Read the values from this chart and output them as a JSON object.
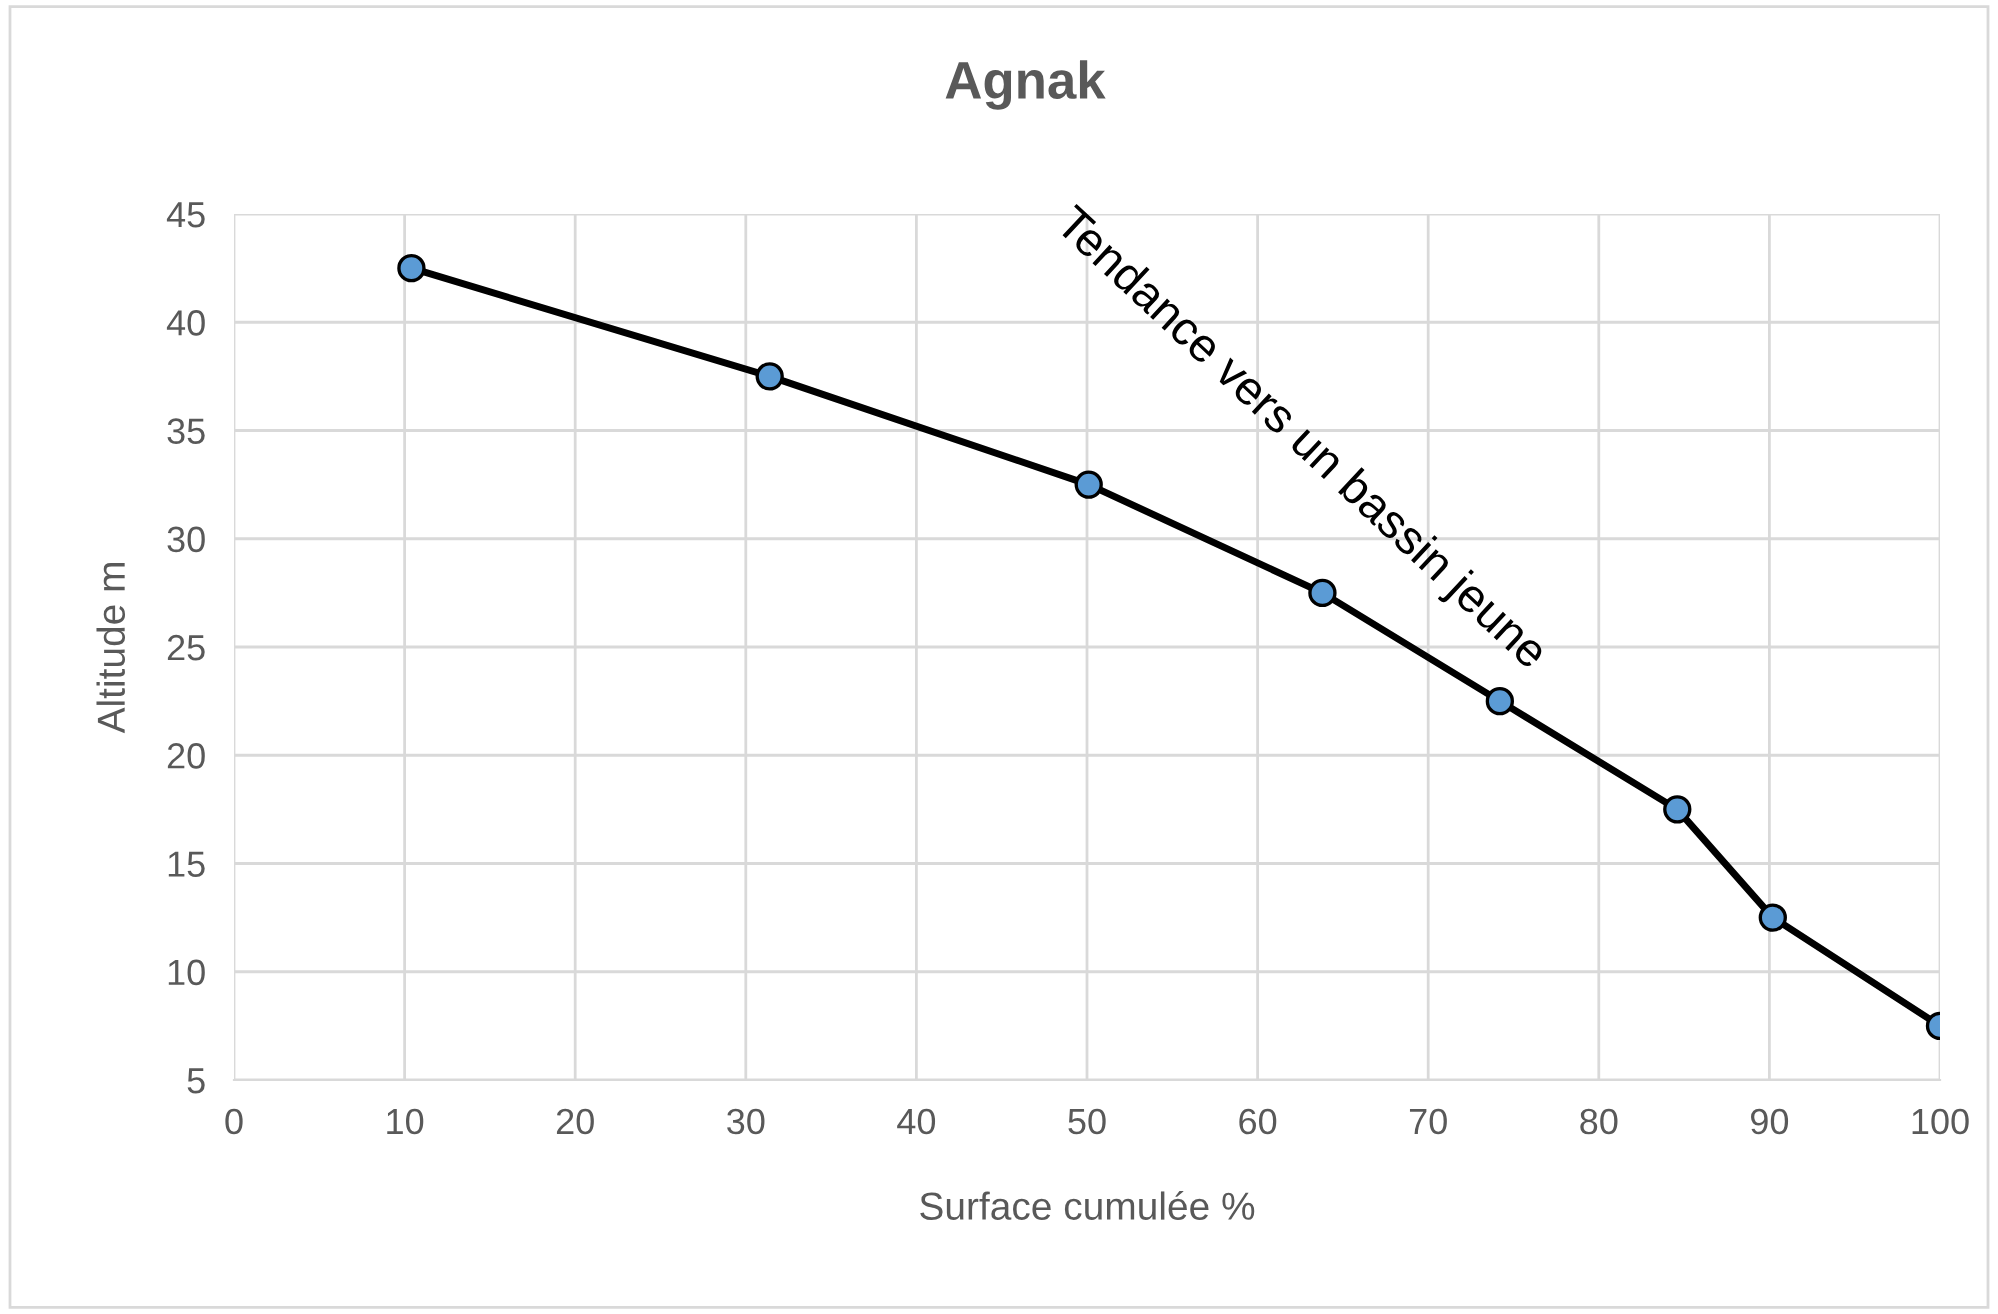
{
  "chart_data": {
    "type": "line",
    "title": "Agnak",
    "xlabel": "Surface cumulée %",
    "ylabel": "Altitude m",
    "x": [
      10.4,
      31.4,
      50.1,
      63.8,
      74.2,
      84.6,
      90.2,
      100
    ],
    "series": [
      {
        "color": "#000000",
        "values": [
          42.5,
          37.5,
          32.5,
          27.5,
          22.5,
          17.5,
          12.5,
          7.5
        ]
      }
    ],
    "marker": "circle",
    "line_style": "solid",
    "grid": true,
    "xlim": [
      0,
      100
    ],
    "xticks": [
      0,
      10,
      20,
      30,
      40,
      50,
      60,
      70,
      80,
      90,
      100
    ],
    "ylim": [
      5,
      45
    ],
    "yticks": [
      5,
      10,
      15,
      20,
      25,
      30,
      35,
      40,
      45
    ],
    "annotations": [
      "Tendance vers un bassin jeune"
    ]
  }
}
